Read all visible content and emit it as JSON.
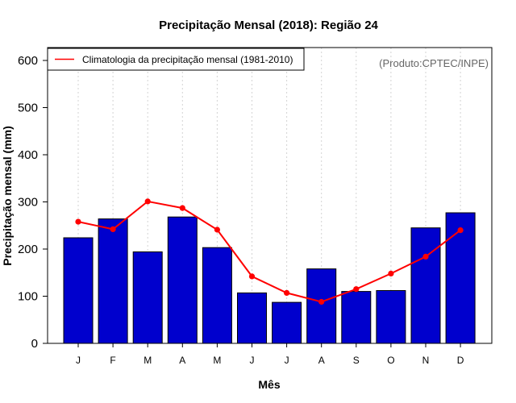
{
  "chart_data": {
    "type": "bar",
    "title": "Precipitação Mensal (2018): Região 24",
    "xlabel": "Mês",
    "ylabel": "Precipitação mensal (mm)",
    "ylim": [
      0,
      600
    ],
    "yticks": [
      0,
      100,
      200,
      300,
      400,
      500,
      600
    ],
    "categories": [
      "J",
      "F",
      "M",
      "A",
      "M",
      "J",
      "J",
      "A",
      "S",
      "O",
      "N",
      "D"
    ],
    "series": [
      {
        "name": "Precipitação mensal (2018)",
        "type": "bar",
        "color": "#0000CD",
        "values": [
          224,
          264,
          194,
          268,
          203,
          107,
          87,
          158,
          110,
          112,
          245,
          277
        ]
      },
      {
        "name": "Climatologia da precipitação mensal (1981-2010)",
        "type": "line",
        "color": "#FF0000",
        "values": [
          258,
          242,
          301,
          287,
          241,
          142,
          107,
          88,
          115,
          148,
          184,
          240
        ]
      }
    ],
    "legend": {
      "position": "top-left",
      "entries": [
        "Climatologia da precipitação mensal (1981-2010)"
      ]
    },
    "annotation": "(Produto:CPTEC/INPE)",
    "grid": "vertical-dotted"
  }
}
